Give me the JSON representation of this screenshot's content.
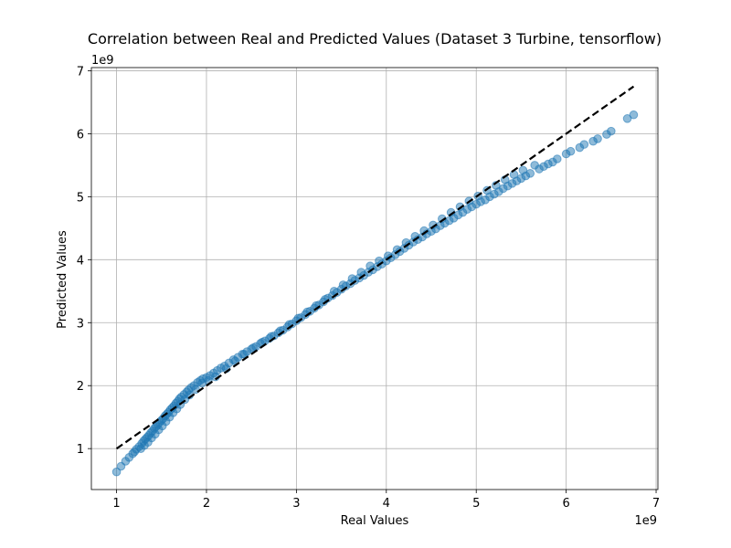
{
  "chart_data": {
    "type": "scatter",
    "title": "Correlation between Real and Predicted Values (Dataset 3 Turbine, tensorflow)",
    "xlabel": "Real Values",
    "ylabel": "Predicted Values",
    "x_offset_text": "1e9",
    "y_offset_text": "1e9",
    "xlim": [
      0.72,
      7.02
    ],
    "ylim": [
      0.35,
      7.05
    ],
    "xticks": [
      1,
      2,
      3,
      4,
      5,
      6,
      7
    ],
    "yticks": [
      1,
      2,
      3,
      4,
      5,
      6,
      7
    ],
    "grid": true,
    "point_color": "#1f77b4",
    "line_color": "#000000",
    "reference_line": {
      "x": [
        1.0,
        6.75
      ],
      "y": [
        1.0,
        6.75
      ]
    },
    "series": [
      {
        "x": [
          1.0,
          1.05,
          1.1,
          1.14,
          1.18,
          1.2,
          1.22,
          1.25,
          1.28,
          1.3,
          1.32,
          1.34,
          1.36,
          1.38,
          1.4,
          1.42,
          1.44,
          1.46,
          1.48,
          1.5,
          1.52,
          1.54,
          1.56,
          1.58,
          1.6,
          1.62,
          1.64,
          1.66,
          1.68,
          1.7,
          1.72,
          1.75,
          1.78,
          1.8,
          1.83,
          1.86,
          1.9,
          1.93,
          1.96,
          2.0,
          2.04,
          2.08,
          2.12,
          2.16,
          2.2,
          2.25,
          2.3,
          2.35,
          2.4,
          2.45,
          2.5,
          2.55,
          2.6,
          2.65,
          2.7,
          2.75,
          2.8,
          2.85,
          2.9,
          2.95,
          3.0,
          3.05,
          3.1,
          3.15,
          3.2,
          3.25,
          3.3,
          3.35,
          3.4,
          3.45,
          3.5,
          3.55,
          3.6,
          3.65,
          3.7,
          3.75,
          3.8,
          3.85,
          3.9,
          3.95,
          4.0,
          4.05,
          4.1,
          4.15,
          4.2,
          4.25,
          4.3,
          4.35,
          4.4,
          4.45,
          4.5,
          4.55,
          4.6,
          4.65,
          4.7,
          4.75,
          4.8,
          4.85,
          4.9,
          4.95,
          5.0,
          5.05,
          5.1,
          5.15,
          5.2,
          5.25,
          5.3,
          5.35,
          5.4,
          5.45,
          5.5,
          5.55,
          5.6,
          5.7,
          5.75,
          5.8,
          5.85,
          5.9,
          6.0,
          6.05,
          6.15,
          6.2,
          6.3,
          6.35,
          6.45,
          6.5,
          6.68,
          6.75,
          1.27,
          1.31,
          1.35,
          1.39,
          1.43,
          1.47,
          1.51,
          1.55,
          1.59,
          1.63,
          1.67,
          1.71,
          1.76,
          1.81,
          1.88,
          1.95,
          2.02,
          2.1,
          2.22,
          2.32,
          2.42,
          2.52,
          2.62,
          2.72,
          2.82,
          2.92,
          3.02,
          3.12,
          3.22,
          3.32,
          3.42,
          3.52,
          3.62,
          3.72,
          3.82,
          3.92,
          4.02,
          4.12,
          4.22,
          4.32,
          4.42,
          4.52,
          4.62,
          4.72,
          4.82,
          4.92,
          5.02,
          5.12,
          5.22,
          5.32,
          5.42,
          5.52,
          5.65
        ],
        "y": [
          0.63,
          0.72,
          0.8,
          0.86,
          0.92,
          0.95,
          0.99,
          1.03,
          1.08,
          1.12,
          1.15,
          1.18,
          1.21,
          1.25,
          1.28,
          1.32,
          1.35,
          1.38,
          1.42,
          1.45,
          1.48,
          1.52,
          1.55,
          1.58,
          1.62,
          1.65,
          1.68,
          1.72,
          1.75,
          1.79,
          1.82,
          1.86,
          1.9,
          1.93,
          1.97,
          2.0,
          2.05,
          2.08,
          2.11,
          2.13,
          2.16,
          2.2,
          2.24,
          2.28,
          2.31,
          2.36,
          2.41,
          2.45,
          2.5,
          2.54,
          2.58,
          2.62,
          2.67,
          2.71,
          2.75,
          2.79,
          2.84,
          2.88,
          2.93,
          2.98,
          3.03,
          3.08,
          3.13,
          3.18,
          3.23,
          3.28,
          3.33,
          3.39,
          3.43,
          3.48,
          3.53,
          3.58,
          3.62,
          3.67,
          3.71,
          3.75,
          3.8,
          3.84,
          3.89,
          3.93,
          3.98,
          4.03,
          4.08,
          4.13,
          4.18,
          4.23,
          4.28,
          4.32,
          4.36,
          4.41,
          4.45,
          4.49,
          4.54,
          4.58,
          4.62,
          4.66,
          4.71,
          4.75,
          4.8,
          4.84,
          4.88,
          4.92,
          4.95,
          5.0,
          5.04,
          5.08,
          5.13,
          5.17,
          5.21,
          5.25,
          5.29,
          5.33,
          5.37,
          5.44,
          5.48,
          5.52,
          5.55,
          5.6,
          5.68,
          5.72,
          5.78,
          5.83,
          5.88,
          5.92,
          5.99,
          6.04,
          6.24,
          6.3,
          1.0,
          1.05,
          1.1,
          1.17,
          1.23,
          1.3,
          1.36,
          1.43,
          1.5,
          1.57,
          1.63,
          1.7,
          1.78,
          1.85,
          1.94,
          2.04,
          2.08,
          2.14,
          2.27,
          2.39,
          2.5,
          2.6,
          2.69,
          2.78,
          2.87,
          2.97,
          3.07,
          3.17,
          3.27,
          3.37,
          3.5,
          3.6,
          3.7,
          3.8,
          3.9,
          3.98,
          4.06,
          4.16,
          4.27,
          4.37,
          4.46,
          4.55,
          4.65,
          4.75,
          4.84,
          4.93,
          5.01,
          5.1,
          5.18,
          5.27,
          5.35,
          5.42,
          5.5
        ]
      }
    ]
  }
}
